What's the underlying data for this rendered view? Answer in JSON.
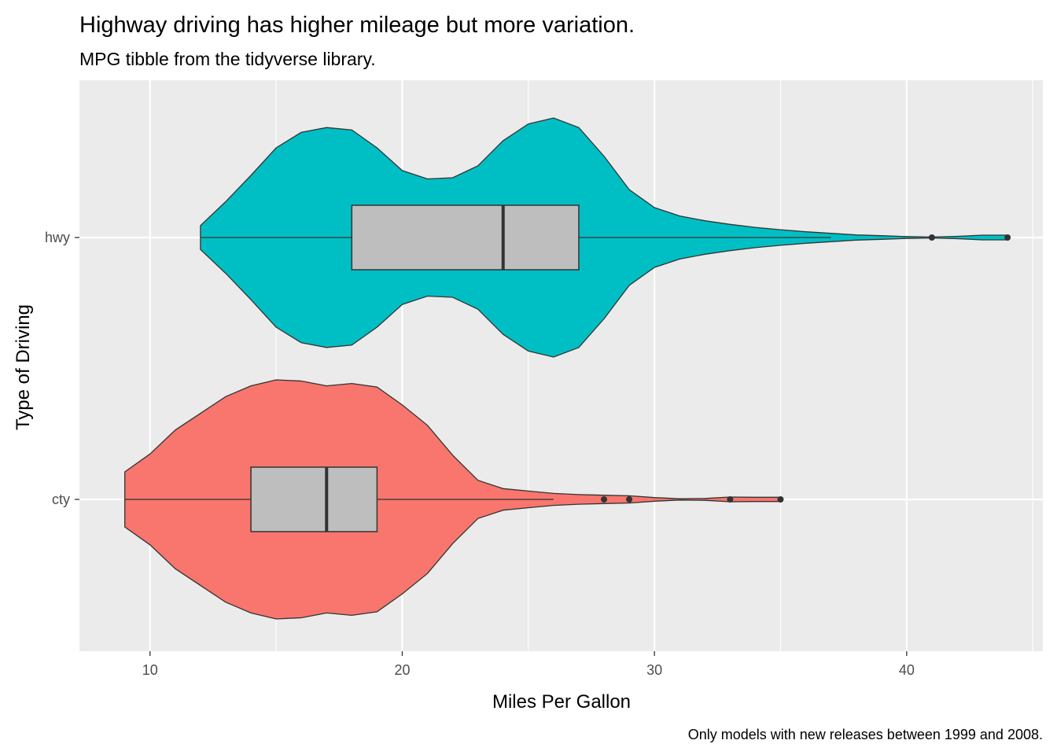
{
  "chart_data": {
    "type": "violin",
    "title": "Highway driving has higher mileage but more variation.",
    "subtitle": "MPG tibble from the tidyverse library.",
    "caption": "Only models with new releases between 1999 and 2008.",
    "xlabel": "Miles Per Gallon",
    "ylabel": "Type of Driving",
    "xlim": [
      7.2,
      45.4
    ],
    "x_ticks": [
      10,
      20,
      30,
      40
    ],
    "grid": true,
    "categories": [
      "cty",
      "hwy"
    ],
    "series": [
      {
        "name": "cty",
        "color": "#F8766D",
        "box": {
          "q1": 14,
          "median": 17,
          "q3": 19,
          "whisker_low": 9,
          "whisker_high": 26
        },
        "outliers": [
          28,
          29,
          33,
          35
        ],
        "density": [
          [
            9,
            0.23
          ],
          [
            10,
            0.38
          ],
          [
            11,
            0.58
          ],
          [
            12,
            0.72
          ],
          [
            13,
            0.86
          ],
          [
            14,
            0.95
          ],
          [
            15,
            1.0
          ],
          [
            16,
            0.99
          ],
          [
            17,
            0.95
          ],
          [
            18,
            0.97
          ],
          [
            19,
            0.94
          ],
          [
            20,
            0.79
          ],
          [
            21,
            0.62
          ],
          [
            22,
            0.37
          ],
          [
            23,
            0.16
          ],
          [
            24,
            0.09
          ],
          [
            25,
            0.07
          ],
          [
            26,
            0.05
          ],
          [
            27,
            0.04
          ],
          [
            28,
            0.035
          ],
          [
            29,
            0.03
          ],
          [
            30,
            0.015
          ],
          [
            31,
            0.005
          ],
          [
            32,
            0.008
          ],
          [
            33,
            0.02
          ],
          [
            34,
            0.018
          ],
          [
            35,
            0.018
          ]
        ]
      },
      {
        "name": "hwy",
        "color": "#00BFC4",
        "box": {
          "q1": 18,
          "median": 24,
          "q3": 27,
          "whisker_low": 12,
          "whisker_high": 37
        },
        "outliers": [
          41,
          44
        ],
        "density": [
          [
            12,
            0.1
          ],
          [
            13,
            0.3
          ],
          [
            14,
            0.52
          ],
          [
            15,
            0.75
          ],
          [
            16,
            0.88
          ],
          [
            17,
            0.92
          ],
          [
            18,
            0.9
          ],
          [
            19,
            0.75
          ],
          [
            20,
            0.56
          ],
          [
            21,
            0.49
          ],
          [
            22,
            0.5
          ],
          [
            23,
            0.6
          ],
          [
            24,
            0.81
          ],
          [
            25,
            0.95
          ],
          [
            26,
            1.0
          ],
          [
            27,
            0.92
          ],
          [
            28,
            0.68
          ],
          [
            29,
            0.4
          ],
          [
            30,
            0.25
          ],
          [
            31,
            0.18
          ],
          [
            32,
            0.14
          ],
          [
            33,
            0.11
          ],
          [
            34,
            0.085
          ],
          [
            35,
            0.065
          ],
          [
            36,
            0.048
          ],
          [
            37,
            0.035
          ],
          [
            38,
            0.022
          ],
          [
            39,
            0.015
          ],
          [
            40,
            0.008
          ],
          [
            41,
            0.004
          ],
          [
            42,
            0.01
          ],
          [
            43,
            0.02
          ],
          [
            44,
            0.02
          ]
        ]
      }
    ]
  }
}
